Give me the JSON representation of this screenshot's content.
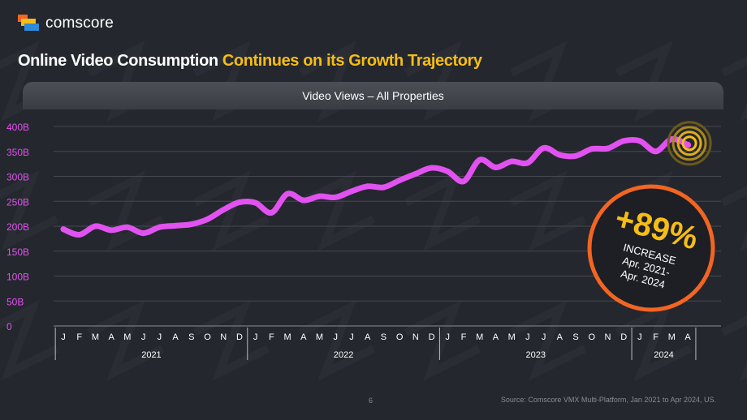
{
  "brand": {
    "name": "comscore",
    "colors": {
      "orange": "#f26522",
      "yellow": "#f6bd16",
      "blue": "#2f8ad8"
    }
  },
  "title": {
    "part1": "Online Video Consumption ",
    "part2": "Continues on its Growth Trajectory"
  },
  "callout": {
    "value": "+89%",
    "line1": "INCREASE",
    "line2": "Apr. 2021-",
    "line3": "Apr. 2024"
  },
  "footer": {
    "page": "6",
    "source": "Source: Comscore VMX Multi-Platform, Jan 2021 to Apr 2024, US."
  },
  "chart_data": {
    "type": "line",
    "title": "Video Views – All Properties",
    "xlabel": "",
    "ylabel": "",
    "ylim": [
      0,
      400
    ],
    "y_unit": "B",
    "yticks": [
      "0",
      "50B",
      "100B",
      "150B",
      "200B",
      "250B",
      "300B",
      "350B",
      "400B"
    ],
    "grid": true,
    "line_color": "#e152f0",
    "categories": [
      "J",
      "F",
      "M",
      "A",
      "M",
      "J",
      "J",
      "A",
      "S",
      "O",
      "N",
      "D",
      "J",
      "F",
      "M",
      "A",
      "M",
      "J",
      "J",
      "A",
      "S",
      "O",
      "N",
      "D",
      "J",
      "F",
      "M",
      "A",
      "M",
      "J",
      "J",
      "A",
      "S",
      "O",
      "N",
      "D",
      "J",
      "F",
      "M",
      "A"
    ],
    "year_groups": [
      {
        "label": "2021",
        "count": 12
      },
      {
        "label": "2022",
        "count": 12
      },
      {
        "label": "2023",
        "count": 12
      },
      {
        "label": "2024",
        "count": 4
      }
    ],
    "series": [
      {
        "values": [
          194,
          183,
          200,
          192,
          198,
          186,
          198,
          201,
          204,
          214,
          233,
          248,
          247,
          227,
          265,
          252,
          260,
          258,
          270,
          280,
          278,
          292,
          305,
          317,
          310,
          290,
          333,
          318,
          330,
          327,
          357,
          343,
          341,
          355,
          356,
          371,
          371,
          350,
          375,
          363
        ]
      }
    ]
  }
}
